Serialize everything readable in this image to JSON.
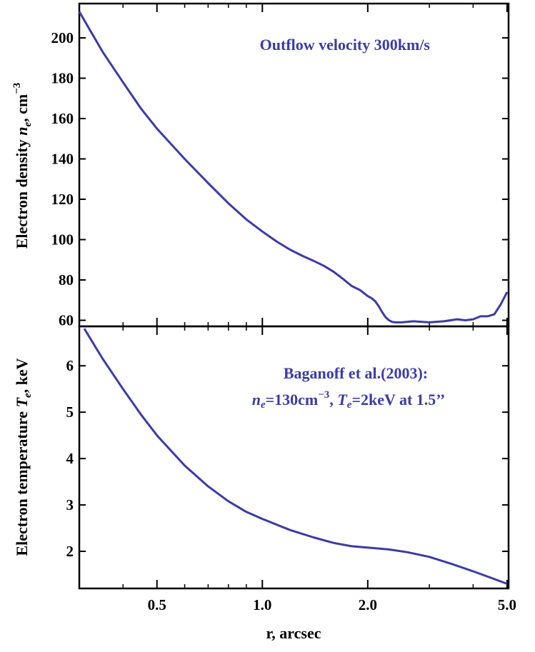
{
  "chart_data": [
    {
      "type": "line",
      "panel": "top",
      "ylabel_text": "Electron density ",
      "ylabel_symbol": "n",
      "ylabel_sub": "e",
      "ylabel_unit": ", cm",
      "ylabel_sup": "−3",
      "annotation": "Outflow velocity 300km/s",
      "x_scale": "log",
      "xlim": [
        0.3,
        5.05
      ],
      "ylim": [
        57,
        217
      ],
      "yticks": [
        60,
        80,
        100,
        120,
        140,
        160,
        180,
        200
      ],
      "line_color": "#3b3ba6",
      "series": [
        {
          "x": [
            0.3,
            0.35,
            0.4,
            0.45,
            0.5,
            0.6,
            0.7,
            0.8,
            0.9,
            1.0,
            1.1,
            1.2,
            1.3,
            1.4,
            1.5,
            1.6,
            1.7,
            1.8,
            1.9,
            2.0,
            2.05,
            2.1,
            2.15,
            2.2,
            2.25,
            2.3,
            2.35,
            2.4,
            2.5,
            2.7,
            3.0,
            3.3,
            3.6,
            3.8,
            4.0,
            4.2,
            4.4,
            4.6,
            4.8,
            5.0
          ],
          "y": [
            213,
            193,
            178,
            165,
            155,
            140,
            128,
            118,
            110,
            104,
            99,
            95,
            92,
            89.5,
            87,
            84,
            80.5,
            77,
            75,
            72,
            71,
            69.5,
            67,
            64,
            61.5,
            60,
            59.2,
            59,
            59,
            59.5,
            59,
            59.5,
            60.5,
            60,
            60.5,
            62,
            62,
            63,
            68,
            74
          ]
        }
      ]
    },
    {
      "type": "line",
      "panel": "bottom",
      "ylabel_text": "Electron temperature ",
      "ylabel_symbol": "T",
      "ylabel_sub": "e",
      "ylabel_unit": ", keV",
      "annotation_line1": "Baganoff et al.(2003):",
      "annotation_line2": {
        "n": "n",
        "n_sub": "e",
        "n_val": "=130cm",
        "n_sup": "−3",
        "comma": ", ",
        "t": "T",
        "t_sub": "e",
        "t_val": "=2keV  at 1.5’’"
      },
      "x_scale": "log",
      "xlim": [
        0.3,
        5.05
      ],
      "ylim": [
        1.2,
        6.85
      ],
      "yticks": [
        2,
        3,
        4,
        5,
        6
      ],
      "xticks": [
        0.5,
        1.0,
        2.0,
        5.0
      ],
      "xtick_labels": [
        "0.5",
        "1.0",
        "2.0",
        "5.0"
      ],
      "xlabel": "r, arcsec",
      "line_color": "#3b3ba6",
      "series": [
        {
          "x": [
            0.31,
            0.35,
            0.4,
            0.45,
            0.5,
            0.6,
            0.7,
            0.8,
            0.9,
            1.0,
            1.2,
            1.4,
            1.6,
            1.8,
            2.0,
            2.3,
            2.6,
            3.0,
            3.5,
            4.0,
            4.5,
            5.0
          ],
          "y": [
            6.8,
            6.15,
            5.5,
            4.95,
            4.5,
            3.85,
            3.4,
            3.08,
            2.85,
            2.7,
            2.46,
            2.3,
            2.18,
            2.11,
            2.08,
            2.04,
            1.98,
            1.88,
            1.72,
            1.57,
            1.43,
            1.3
          ]
        }
      ]
    }
  ]
}
